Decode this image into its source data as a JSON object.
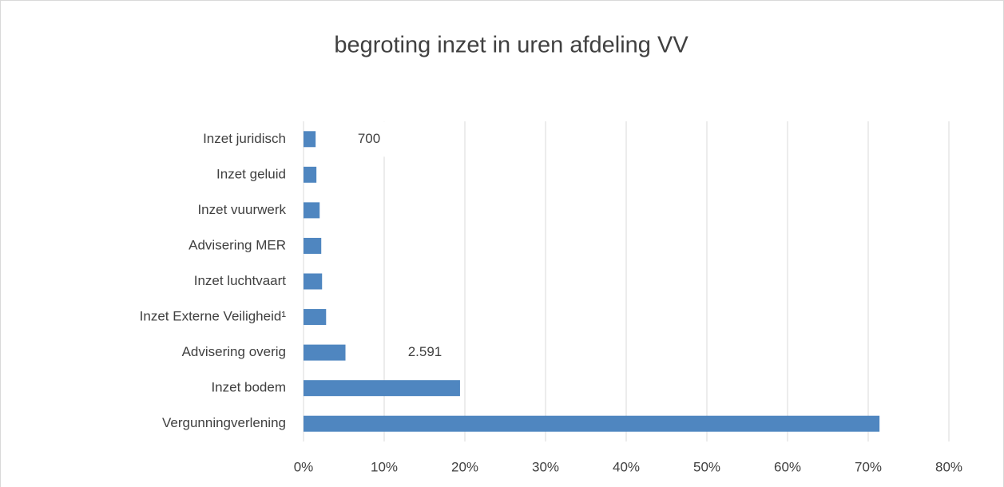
{
  "chart_data": {
    "type": "bar",
    "orientation": "horizontal",
    "title": "begroting inzet in uren afdeling VV",
    "categories": [
      "Inzet juridisch",
      "Inzet geluid",
      "Inzet vuurwerk",
      "Advisering MER",
      "Inzet luchtvaart",
      "Inzet Externe Veiligheid¹",
      "Advisering overig",
      "Inzet bodem",
      "Vergunningverlening"
    ],
    "values": [
      1.5,
      1.6,
      2.0,
      2.2,
      2.3,
      2.8,
      5.2,
      19.4,
      71.4
    ],
    "color": "#4f86c0",
    "xlim": [
      0,
      80
    ],
    "xticks": [
      {
        "value": 0,
        "label": "0%"
      },
      {
        "value": 10,
        "label": "10%"
      },
      {
        "value": 20,
        "label": "20%"
      },
      {
        "value": 30,
        "label": "30%"
      },
      {
        "value": 40,
        "label": "40%"
      },
      {
        "value": 50,
        "label": "50%"
      },
      {
        "value": 60,
        "label": "60%"
      },
      {
        "value": 70,
        "label": "70%"
      },
      {
        "value": 80,
        "label": "80%"
      }
    ],
    "grid": true,
    "annotations": [
      "700",
      "2.591"
    ]
  }
}
